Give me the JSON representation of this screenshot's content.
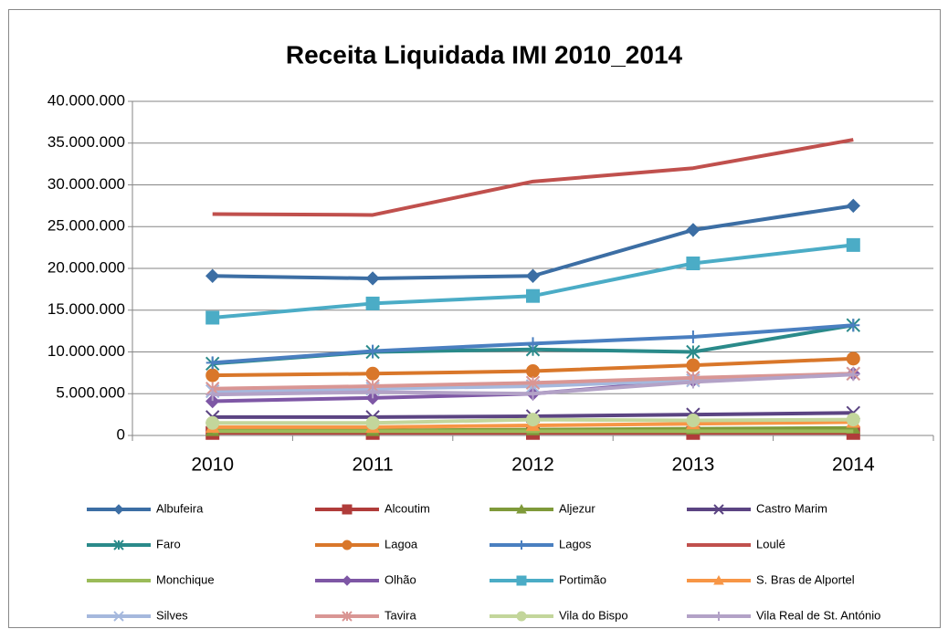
{
  "chart_data": {
    "type": "line",
    "title": "Receita Liquidada IMI 2010_2014",
    "categories": [
      "2010",
      "2011",
      "2012",
      "2013",
      "2014"
    ],
    "ylim": [
      0,
      40000000
    ],
    "yticks": [
      0,
      {
        "value": 5000000,
        "label": "5.000.000"
      },
      {
        "value": 10000000,
        "label": "10.000.000"
      },
      {
        "value": 15000000,
        "label": "15.000.000"
      },
      {
        "value": 20000000,
        "label": "20.000.000"
      },
      {
        "value": 25000000,
        "label": "25.000.000"
      },
      {
        "value": 30000000,
        "label": "30.000.000"
      },
      {
        "value": 35000000,
        "label": "35.000.000"
      },
      {
        "value": 40000000,
        "label": "40.000.000"
      }
    ],
    "grid": true,
    "legend": "bottom",
    "series": [
      {
        "name": "Albufeira",
        "color": "#3c6ea4",
        "marker": "diamond",
        "values": [
          19100000,
          18800000,
          19100000,
          24600000,
          27500000
        ]
      },
      {
        "name": "Alcoutim",
        "color": "#b03c3a",
        "marker": "square",
        "values": [
          300000,
          300000,
          300000,
          300000,
          300000
        ]
      },
      {
        "name": "Aljezur",
        "color": "#7f9a3a",
        "marker": "triangle",
        "values": [
          600000,
          600000,
          700000,
          800000,
          900000
        ]
      },
      {
        "name": "Castro Marim",
        "color": "#5b4482",
        "marker": "x",
        "values": [
          2200000,
          2200000,
          2300000,
          2500000,
          2700000
        ]
      },
      {
        "name": "Faro",
        "color": "#2a8a8a",
        "marker": "star",
        "values": [
          8600000,
          10000000,
          10300000,
          10000000,
          13200000
        ]
      },
      {
        "name": "Lagoa",
        "color": "#d9772a",
        "marker": "circle",
        "values": [
          7200000,
          7400000,
          7700000,
          8400000,
          9200000
        ]
      },
      {
        "name": "Lagos",
        "color": "#4a7fc0",
        "marker": "plus",
        "values": [
          8700000,
          10100000,
          11000000,
          11800000,
          13200000
        ]
      },
      {
        "name": "Loulé",
        "color": "#c0504d",
        "marker": "none",
        "values": [
          26500000,
          26400000,
          30400000,
          32000000,
          35400000
        ]
      },
      {
        "name": "Monchique",
        "color": "#9bbb59",
        "marker": "none",
        "values": [
          500000,
          500000,
          500000,
          500000,
          500000
        ]
      },
      {
        "name": "Olhão",
        "color": "#7e57a5",
        "marker": "diamond",
        "values": [
          4100000,
          4500000,
          5000000,
          6600000,
          7400000
        ]
      },
      {
        "name": "Portimão",
        "color": "#4bacc6",
        "marker": "square",
        "values": [
          14100000,
          15800000,
          16700000,
          20600000,
          22800000
        ]
      },
      {
        "name": "S. Bras de Alportel",
        "color": "#f79646",
        "marker": "triangle",
        "values": [
          1000000,
          1000000,
          1200000,
          1400000,
          1600000
        ]
      },
      {
        "name": "Silves",
        "color": "#a5b8dd",
        "marker": "x",
        "values": [
          5300000,
          5600000,
          5900000,
          6600000,
          7400000
        ]
      },
      {
        "name": "Tavira",
        "color": "#d99694",
        "marker": "star",
        "values": [
          5600000,
          5900000,
          6300000,
          6900000,
          7400000
        ]
      },
      {
        "name": "Vila do Bispo",
        "color": "#c3d69b",
        "marker": "circle",
        "values": [
          1500000,
          1500000,
          1900000,
          1800000,
          1900000
        ]
      },
      {
        "name": "Vila Real de St. António",
        "color": "#b3a2c7",
        "marker": "plus",
        "values": [
          4900000,
          5200000,
          5000000,
          6400000,
          7300000
        ]
      }
    ]
  }
}
